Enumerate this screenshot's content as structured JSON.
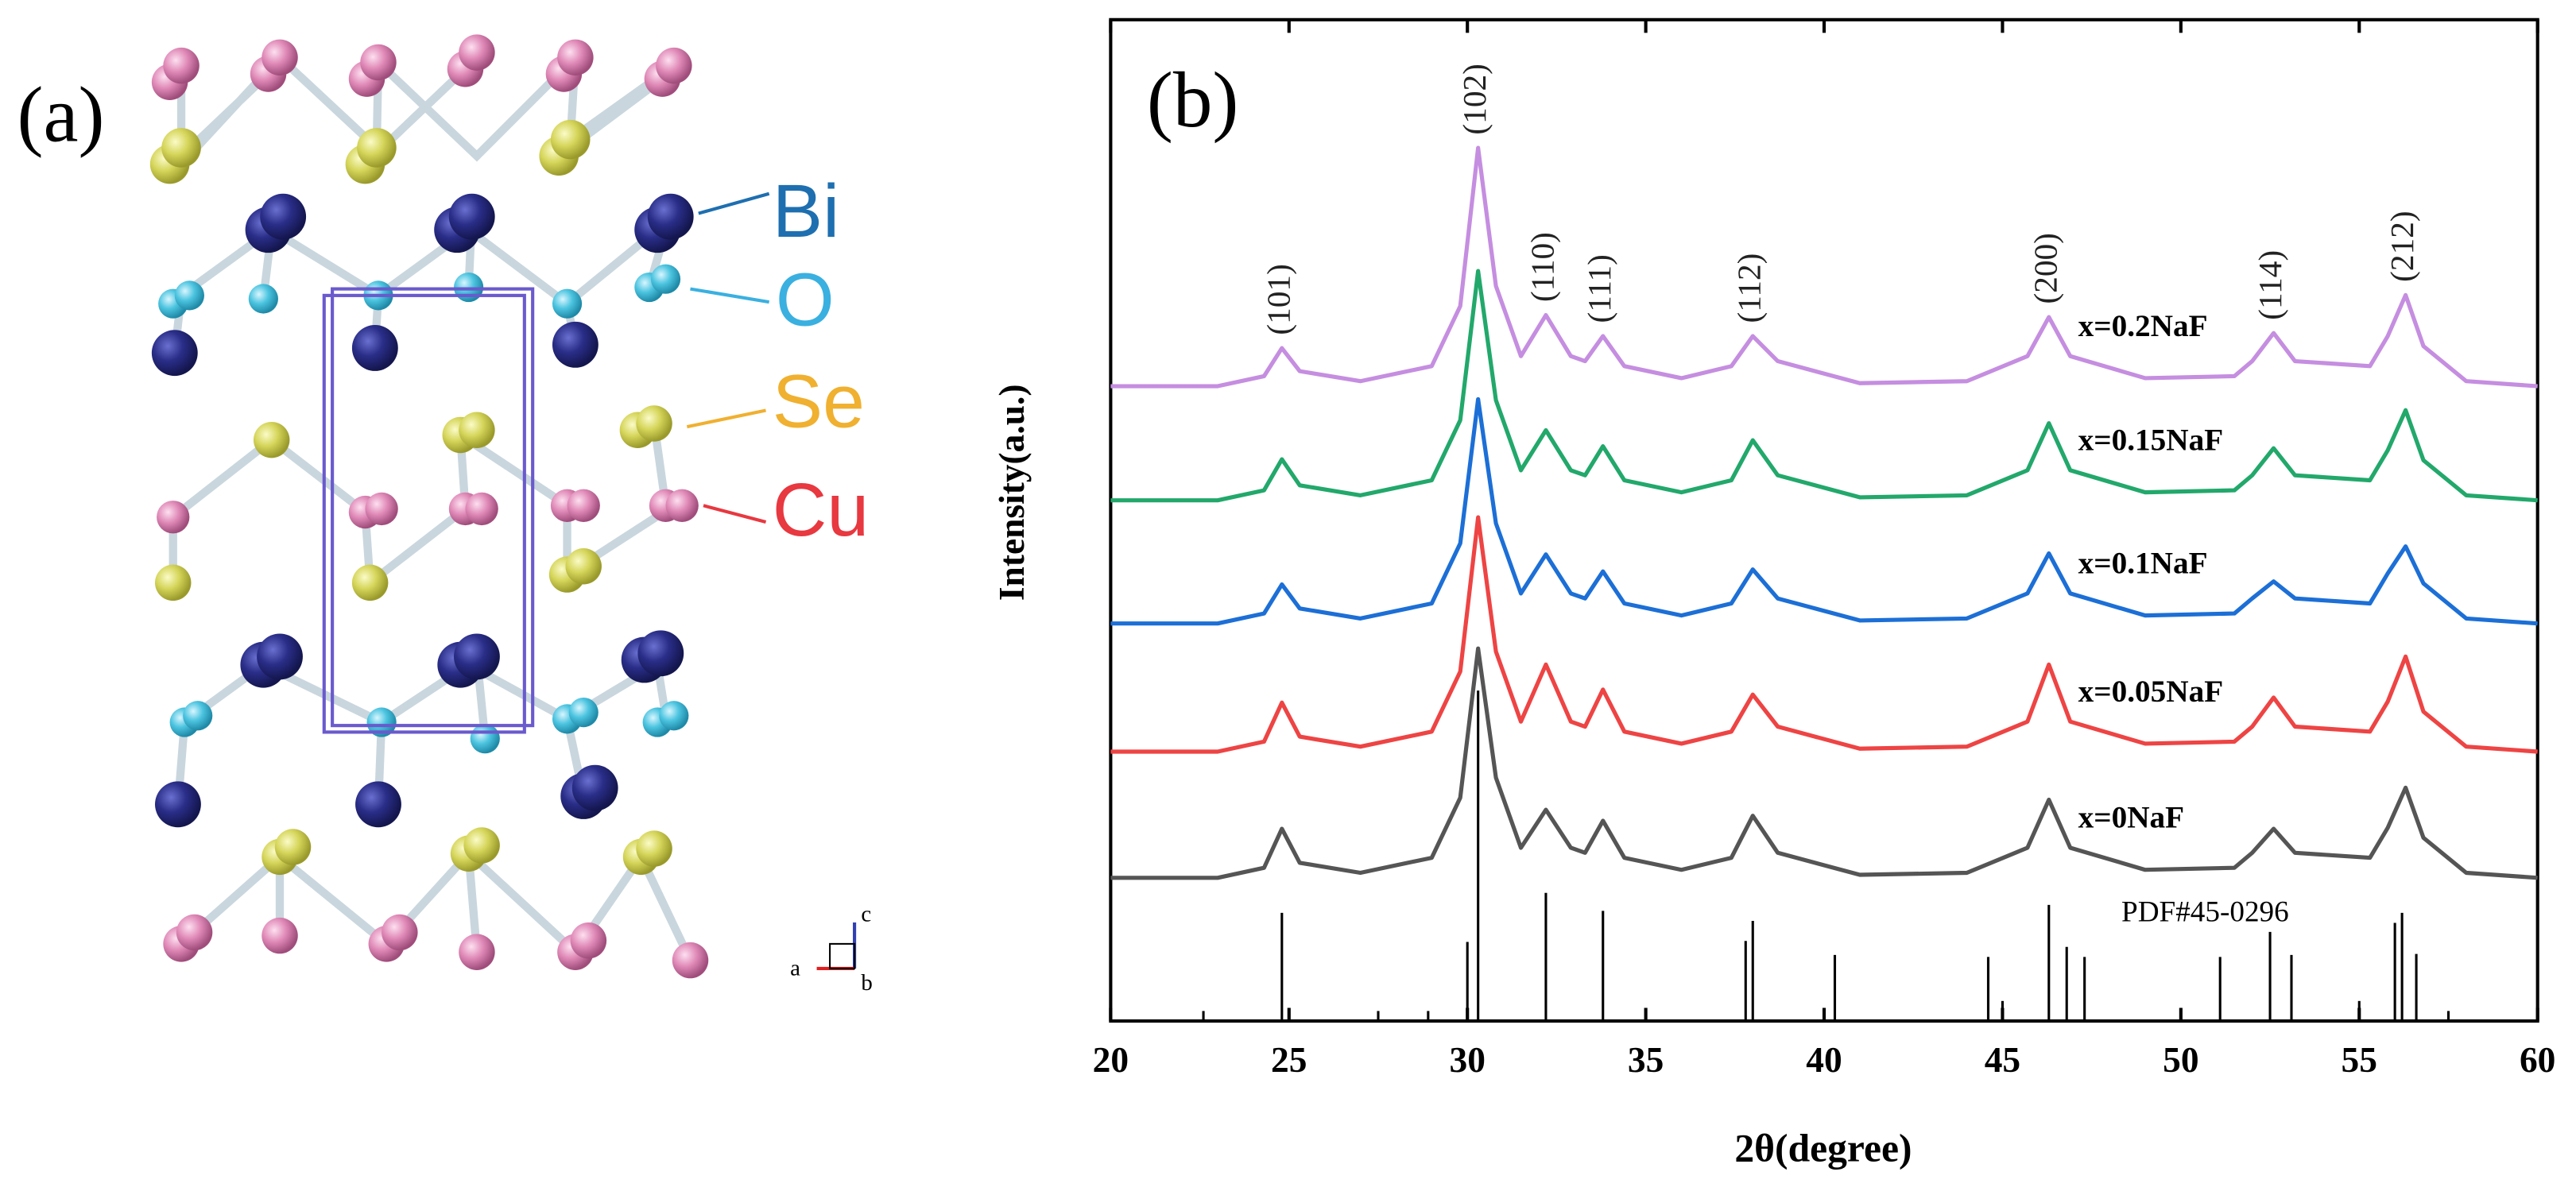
{
  "panel_a": {
    "label": "(a)",
    "elements": [
      "Bi",
      "O",
      "Se",
      "Cu"
    ],
    "axes": [
      "a",
      "b",
      "c"
    ]
  },
  "chart_data": {
    "type": "line",
    "label": "(b)",
    "x_label": "2θ(degree)",
    "y_label": "Intensity(a.u.)",
    "xlim": [
      20,
      60
    ],
    "xticks": [
      20,
      25,
      30,
      35,
      40,
      45,
      50,
      55,
      60
    ],
    "ylim": [
      0,
      100
    ],
    "x": [
      20,
      23,
      24.3,
      24.8,
      25.3,
      27,
      29,
      29.8,
      30.3,
      30.8,
      31.5,
      32.2,
      32.9,
      33.3,
      33.8,
      34.4,
      36,
      37.4,
      38.0,
      38.7,
      41,
      44,
      45.7,
      46.3,
      46.9,
      49,
      51.5,
      52.0,
      52.6,
      53.2,
      55.3,
      55.8,
      56.3,
      56.8,
      58,
      60
    ],
    "series": [
      {
        "name": "x=0.2NaF",
        "color": "#c58ee0",
        "values": [
          63.4,
          63.4,
          64.4,
          67.2,
          64.9,
          63.9,
          65.4,
          71.4,
          87.2,
          73.4,
          66.4,
          70.5,
          66.4,
          65.9,
          68.4,
          65.4,
          64.2,
          65.4,
          68.4,
          65.9,
          63.7,
          63.9,
          66.4,
          70.3,
          66.4,
          64.2,
          64.4,
          65.9,
          68.7,
          65.9,
          65.4,
          68.4,
          72.5,
          67.4,
          63.9,
          63.4
        ]
      },
      {
        "name": "x=0.15NaF",
        "color": "#22a86b",
        "values": [
          52.0,
          52.0,
          53.0,
          56.1,
          53.5,
          52.5,
          54.0,
          60.0,
          74.9,
          62.0,
          55.0,
          59.0,
          55.0,
          54.5,
          57.4,
          54.0,
          52.8,
          54.0,
          58.0,
          54.5,
          52.3,
          52.5,
          55.0,
          59.7,
          55.0,
          52.8,
          53.0,
          54.5,
          57.2,
          54.5,
          54.0,
          57.0,
          61.0,
          56.0,
          52.5,
          52.0
        ]
      },
      {
        "name": "x=0.1NaF",
        "color": "#1c6fd6",
        "values": [
          39.7,
          39.7,
          40.7,
          43.6,
          41.2,
          40.2,
          41.7,
          47.7,
          62.1,
          49.7,
          42.7,
          46.6,
          42.7,
          42.2,
          44.9,
          41.7,
          40.5,
          41.7,
          45.1,
          42.2,
          40.0,
          40.2,
          42.7,
          46.7,
          42.7,
          40.5,
          40.7,
          42.2,
          43.9,
          42.2,
          41.7,
          44.7,
          47.4,
          43.7,
          40.2,
          39.7
        ]
      },
      {
        "name": "x=0.05NaF",
        "color": "#ee4444",
        "values": [
          26.9,
          26.9,
          27.9,
          31.8,
          28.4,
          27.4,
          28.9,
          34.9,
          50.3,
          36.9,
          29.9,
          35.6,
          29.9,
          29.4,
          33.1,
          28.9,
          27.7,
          28.9,
          32.6,
          29.4,
          27.2,
          27.4,
          29.9,
          35.6,
          29.9,
          27.7,
          27.9,
          29.4,
          32.3,
          29.4,
          28.9,
          31.9,
          36.4,
          30.9,
          27.4,
          26.9
        ]
      },
      {
        "name": "x=0NaF",
        "color": "#555555",
        "values": [
          14.3,
          14.3,
          15.3,
          19.2,
          15.8,
          14.8,
          16.3,
          22.3,
          37.2,
          24.3,
          17.3,
          21.1,
          17.3,
          16.8,
          20.0,
          16.3,
          15.1,
          16.3,
          20.5,
          16.8,
          14.6,
          14.8,
          17.3,
          22.1,
          17.3,
          15.1,
          15.3,
          16.8,
          19.2,
          16.8,
          16.3,
          19.3,
          23.3,
          18.3,
          14.8,
          14.3
        ]
      }
    ],
    "reference": {
      "name": "PDF#45-0296",
      "color": "#000000",
      "x": [
        22.6,
        24.8,
        27.5,
        28.9,
        30.0,
        30.3,
        32.2,
        33.8,
        37.8,
        38.0,
        40.3,
        44.6,
        45.0,
        46.3,
        46.8,
        47.3,
        51.1,
        52.5,
        53.1,
        55.0,
        56.0,
        56.2,
        56.6,
        57.5
      ],
      "values": [
        1,
        10.8,
        1,
        1,
        7.9,
        33,
        12.8,
        11,
        8,
        10,
        6.6,
        6.4,
        2,
        11.6,
        7.4,
        6.4,
        6.4,
        8.9,
        6.6,
        2,
        9.8,
        10.8,
        6.7,
        1
      ]
    },
    "annotations": [
      {
        "text": "(101)",
        "x": 24.8
      },
      {
        "text": "(102)",
        "x": 30.3
      },
      {
        "text": "(110)",
        "x": 32.2
      },
      {
        "text": "(111)",
        "x": 33.8
      },
      {
        "text": "(112)",
        "x": 38.0
      },
      {
        "text": "(200)",
        "x": 46.3
      },
      {
        "text": "(114)",
        "x": 52.6
      },
      {
        "text": "(212)",
        "x": 56.3
      }
    ]
  }
}
